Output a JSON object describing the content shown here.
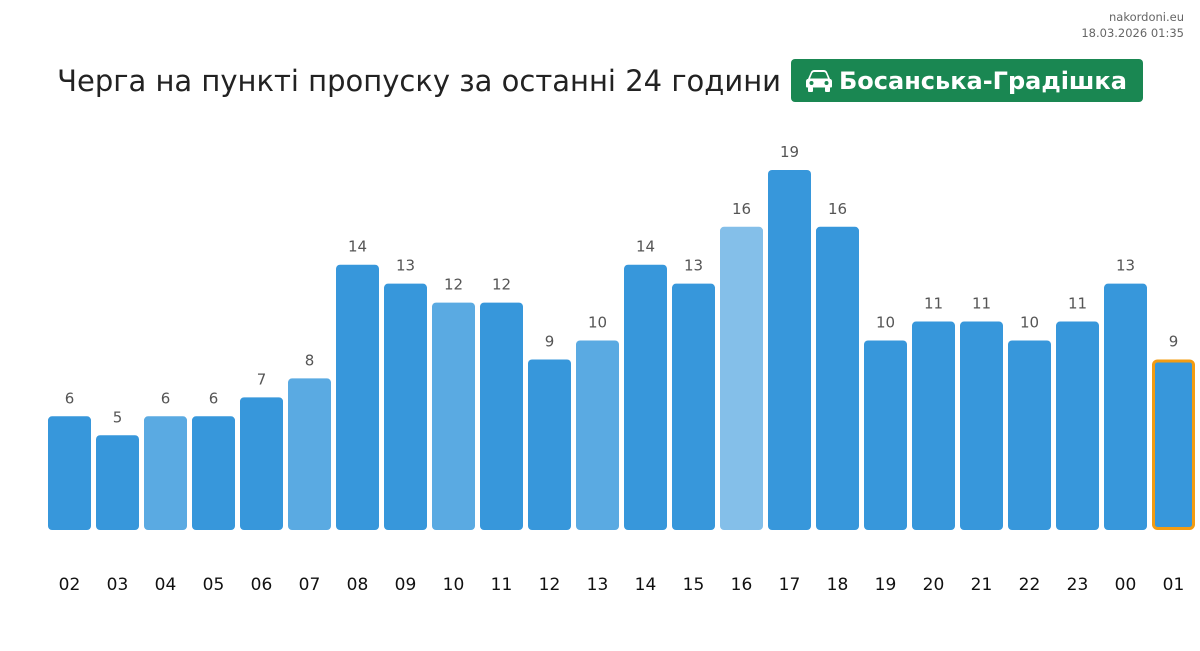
{
  "source": {
    "site": "nakordoni.eu",
    "datetime": "18.03.2026 01:35"
  },
  "header": {
    "title": "Черга на пункті пропуску за останні 24 години",
    "checkpoint": "Босанська-Градішка",
    "checkpoint_icon": "car-icon",
    "checkpoint_color": "#1a8752"
  },
  "chart_data": {
    "type": "bar",
    "categories": [
      "02",
      "03",
      "04",
      "05",
      "06",
      "07",
      "08",
      "09",
      "10",
      "11",
      "12",
      "13",
      "14",
      "15",
      "16",
      "17",
      "18",
      "19",
      "20",
      "21",
      "22",
      "23",
      "00",
      "01"
    ],
    "values": [
      6,
      5,
      6,
      6,
      7,
      8,
      14,
      13,
      12,
      12,
      9,
      10,
      14,
      13,
      16,
      19,
      16,
      10,
      11,
      11,
      10,
      11,
      13,
      9
    ],
    "bar_colors": [
      "#3797db",
      "#3797db",
      "#5aaae2",
      "#3797db",
      "#3797db",
      "#5aaae2",
      "#3797db",
      "#3797db",
      "#5aaae2",
      "#3797db",
      "#3797db",
      "#5aaae2",
      "#3797db",
      "#3797db",
      "#84bfe9",
      "#3797db",
      "#3797db",
      "#3797db",
      "#3797db",
      "#3797db",
      "#3797db",
      "#3797db",
      "#3797db",
      "#3797db"
    ],
    "highlight_index": 23,
    "highlight_color": "#f39c12",
    "data_labels": true,
    "ylim": [
      0,
      19
    ],
    "grid": false,
    "title": "",
    "xlabel": "",
    "ylabel": ""
  }
}
